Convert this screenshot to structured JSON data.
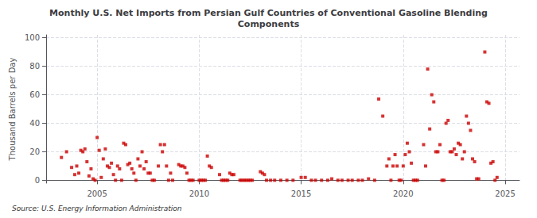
{
  "chart_data": {
    "type": "scatter",
    "title": "Monthly U.S. Net Imports from Persian Gulf Countries of Conventional Gasoline Blending\nComponents",
    "ylabel": "Thousand Barrels per Day",
    "annotation": "Source: U.S. Energy Information Administration",
    "color": "#cc0000",
    "marker": "square",
    "grid": true,
    "xlim": [
      2002.5,
      2025.7
    ],
    "ylim": [
      -2,
      102
    ],
    "xticks": [
      2005,
      2010,
      2015,
      2020,
      2025
    ],
    "yticks": [
      0,
      20,
      40,
      60,
      80,
      100
    ],
    "x": [
      2003.25,
      2003.5,
      2003.75,
      2003.9,
      2004.0,
      2004.1,
      2004.2,
      2004.3,
      2004.4,
      2004.5,
      2004.6,
      2004.7,
      2004.8,
      2004.9,
      2005.0,
      2005.1,
      2005.2,
      2005.3,
      2005.4,
      2005.5,
      2005.6,
      2005.7,
      2005.8,
      2005.9,
      2006.0,
      2006.1,
      2006.2,
      2006.3,
      2006.4,
      2006.5,
      2006.6,
      2006.7,
      2006.8,
      2006.9,
      2007.0,
      2007.1,
      2007.2,
      2007.3,
      2007.4,
      2007.5,
      2007.6,
      2007.7,
      2007.8,
      2008.0,
      2008.1,
      2008.2,
      2008.3,
      2008.4,
      2008.5,
      2008.6,
      2008.7,
      2009.0,
      2009.1,
      2009.2,
      2009.3,
      2009.4,
      2009.5,
      2009.6,
      2009.7,
      2010.0,
      2010.1,
      2010.2,
      2010.3,
      2010.4,
      2010.5,
      2010.6,
      2011.0,
      2011.1,
      2011.2,
      2011.3,
      2011.4,
      2011.5,
      2011.6,
      2011.7,
      2012.0,
      2012.1,
      2012.2,
      2012.3,
      2012.4,
      2012.5,
      2012.6,
      2013.0,
      2013.1,
      2013.2,
      2013.3,
      2013.5,
      2013.7,
      2014.0,
      2014.3,
      2014.6,
      2015.0,
      2015.2,
      2015.5,
      2015.7,
      2016.0,
      2016.3,
      2016.5,
      2016.8,
      2017.0,
      2017.3,
      2017.5,
      2017.8,
      2018.0,
      2018.3,
      2018.6,
      2018.8,
      2019.0,
      2019.2,
      2019.3,
      2019.4,
      2019.5,
      2019.6,
      2019.7,
      2019.8,
      2019.9,
      2020.0,
      2020.1,
      2020.2,
      2020.3,
      2020.4,
      2020.5,
      2020.6,
      2020.7,
      2021.0,
      2021.1,
      2021.2,
      2021.3,
      2021.4,
      2021.5,
      2021.6,
      2021.7,
      2021.8,
      2021.9,
      2022.0,
      2022.1,
      2022.2,
      2022.3,
      2022.4,
      2022.5,
      2022.6,
      2022.7,
      2022.8,
      2022.9,
      2023.0,
      2023.1,
      2023.2,
      2023.3,
      2023.4,
      2023.5,
      2023.6,
      2023.7,
      2024.0,
      2024.1,
      2024.2,
      2024.3,
      2024.4,
      2024.5,
      2024.6
    ],
    "values": [
      16,
      20,
      9,
      4,
      10,
      5,
      21,
      20,
      22,
      13,
      3,
      8,
      1,
      0,
      30,
      21,
      2,
      15,
      22,
      10,
      9,
      12,
      4,
      0,
      10,
      8,
      0,
      26,
      25,
      11,
      12,
      8,
      5,
      0,
      15,
      10,
      20,
      8,
      13,
      5,
      5,
      0,
      0,
      10,
      25,
      20,
      25,
      10,
      0,
      5,
      0,
      11,
      10,
      10,
      9,
      5,
      0,
      0,
      0,
      0,
      0,
      0,
      0,
      17,
      10,
      9,
      4,
      0,
      0,
      0,
      0,
      5,
      4,
      4,
      0,
      0,
      0,
      0,
      0,
      0,
      0,
      6,
      5,
      4,
      0,
      0,
      0,
      0,
      0,
      0,
      2,
      2,
      0,
      0,
      0,
      0,
      1,
      0,
      0,
      0,
      0,
      0,
      0,
      1,
      0,
      57,
      45,
      10,
      15,
      0,
      10,
      18,
      10,
      0,
      0,
      10,
      18,
      26,
      20,
      12,
      0,
      0,
      0,
      25,
      10,
      78,
      36,
      60,
      55,
      20,
      20,
      25,
      0,
      0,
      40,
      42,
      20,
      20,
      22,
      18,
      26,
      25,
      15,
      20,
      45,
      40,
      35,
      15,
      13,
      1,
      1,
      90,
      55,
      54,
      12,
      13,
      0,
      2
    ]
  }
}
